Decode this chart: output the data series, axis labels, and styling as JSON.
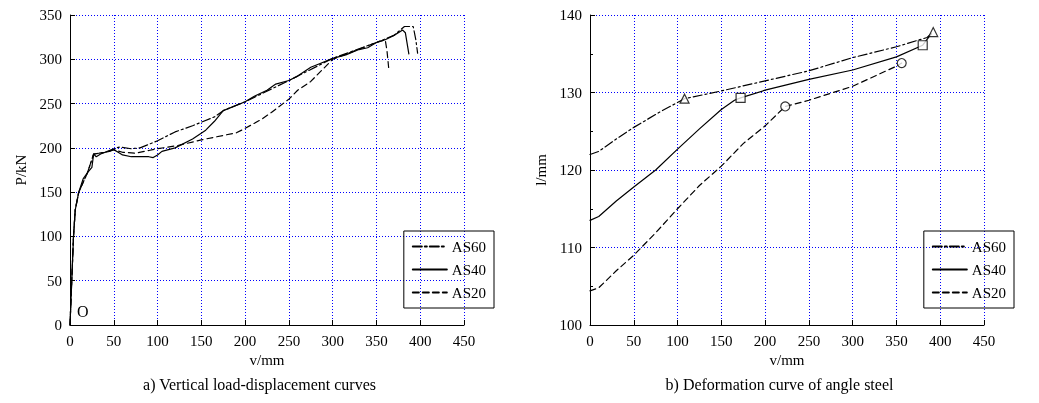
{
  "chart_data": [
    {
      "type": "line",
      "title": "a) Vertical load-displacement curves",
      "xlabel": "v/mm",
      "ylabel": "P/kN",
      "xlim": [
        0,
        450
      ],
      "xticks": [
        0,
        50,
        100,
        150,
        200,
        250,
        300,
        350,
        400,
        450
      ],
      "ylim": [
        0,
        350
      ],
      "yticks": [
        0,
        50,
        100,
        150,
        200,
        250,
        300,
        350
      ],
      "grid": true,
      "legend": "bottom right",
      "marker": "none",
      "annotations": [
        "O"
      ],
      "series": [
        {
          "name": "AS60",
          "color": "#000000",
          "line_style": "dashdot",
          "x": [
            0,
            2,
            4,
            6,
            10,
            20,
            27,
            40,
            50,
            57,
            70,
            80,
            100,
            120,
            140,
            165,
            175,
            200,
            250,
            300,
            350,
            370,
            382,
            392,
            395,
            397
          ],
          "values": [
            0,
            50,
            100,
            130,
            150,
            172,
            193,
            195,
            199,
            201,
            199,
            200,
            208,
            218,
            225,
            235,
            242,
            252,
            276,
            301,
            319,
            327,
            337,
            337,
            322,
            307
          ]
        },
        {
          "name": "AS40",
          "color": "#000000",
          "line_style": "solid",
          "x": [
            0,
            2,
            4,
            6,
            10,
            15,
            20,
            25,
            27,
            30,
            35,
            40,
            45,
            50,
            55,
            60,
            70,
            80,
            90,
            95,
            100,
            105,
            120,
            140,
            155,
            165,
            175,
            185,
            200,
            210,
            225,
            235,
            250,
            260,
            275,
            285,
            300,
            315,
            330,
            340,
            350,
            360,
            370,
            380,
            383,
            387
          ],
          "values": [
            0,
            50,
            100,
            130,
            150,
            165,
            172,
            178,
            193,
            190,
            193,
            195,
            196,
            198,
            195,
            192,
            190,
            190,
            190,
            189,
            192,
            196,
            200,
            210,
            220,
            230,
            242,
            246,
            252,
            258,
            265,
            272,
            276,
            281,
            291,
            295,
            301,
            305,
            311,
            313,
            319,
            322,
            327,
            333,
            330,
            306
          ]
        },
        {
          "name": "AS20",
          "color": "#000000",
          "line_style": "dashed",
          "x": [
            0,
            2,
            4,
            6,
            10,
            20,
            27,
            40,
            50,
            60,
            75,
            90,
            100,
            125,
            150,
            175,
            190,
            200,
            220,
            230,
            250,
            260,
            275,
            300,
            350,
            360,
            362,
            364
          ],
          "values": [
            0,
            50,
            100,
            130,
            150,
            172,
            193,
            195,
            198,
            195,
            194,
            197,
            199,
            203,
            209,
            214,
            217,
            222,
            233,
            240,
            255,
            265,
            275,
            300,
            319,
            322,
            310,
            290
          ]
        }
      ]
    },
    {
      "type": "line",
      "title": "b) Deformation curve of angle steel",
      "xlabel": "v/mm",
      "ylabel": "l/mm",
      "xlim": [
        0,
        450
      ],
      "xticks": [
        0,
        50,
        100,
        150,
        200,
        250,
        300,
        350,
        400,
        450
      ],
      "ylim": [
        100,
        140
      ],
      "yticks": [
        100,
        110,
        120,
        130,
        140
      ],
      "grid": true,
      "legend": "bottom right",
      "marker": "none",
      "series": [
        {
          "name": "AS60",
          "color": "#000000",
          "line_style": "dashdot",
          "x": [
            0,
            10,
            30,
            50,
            80,
            108,
            150,
            200,
            250,
            300,
            350,
            385,
            392
          ],
          "values": [
            122,
            122.4,
            124,
            125.5,
            127.5,
            129.2,
            130.2,
            131.5,
            132.8,
            134.5,
            135.9,
            137.1,
            137.8
          ]
        },
        {
          "name": "AS40",
          "color": "#000000",
          "line_style": "solid",
          "x": [
            0,
            10,
            30,
            50,
            75,
            100,
            125,
            150,
            165,
            172,
            200,
            250,
            300,
            350,
            380,
            390
          ],
          "values": [
            113.5,
            114,
            116,
            117.8,
            120,
            122.7,
            125.3,
            127.8,
            129,
            129.3,
            130.3,
            131.7,
            132.9,
            134.6,
            136.1,
            137.6
          ]
        },
        {
          "name": "AS20",
          "color": "#000000",
          "line_style": "dashed",
          "x": [
            0,
            10,
            30,
            50,
            75,
            100,
            125,
            150,
            175,
            200,
            223,
            250,
            300,
            350,
            356
          ],
          "values": [
            104.4,
            104.8,
            107,
            109,
            111.9,
            115,
            118,
            120.5,
            123.4,
            125.7,
            128.2,
            129,
            130.8,
            133.4,
            133.8
          ]
        },
        {
          "type": "scatter",
          "marker": "triangle",
          "color": "#000000",
          "x": [
            108,
            392
          ],
          "values": [
            129.2,
            137.8
          ]
        },
        {
          "type": "scatter",
          "marker": "square",
          "color": "#000000",
          "x": [
            172,
            380
          ],
          "values": [
            129.3,
            136.1
          ]
        },
        {
          "type": "scatter",
          "marker": "circle",
          "color": "#000000",
          "x": [
            223,
            356
          ],
          "values": [
            128.2,
            133.8
          ]
        }
      ]
    }
  ]
}
